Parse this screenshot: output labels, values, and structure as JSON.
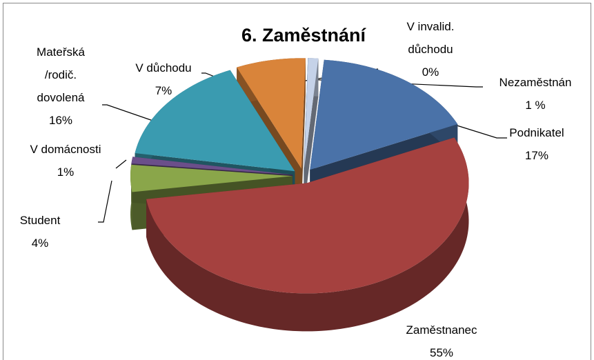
{
  "chart_data": {
    "type": "pie3d",
    "title": "6. Zaměstnání",
    "categories": [
      "Podnikatel",
      "Zaměstnanec",
      "Student",
      "V domácnosti",
      "Mateřská /rodič. dovolená",
      "V důchodu",
      "V invalid. důchodu",
      "Nezaměstnán"
    ],
    "values": [
      17,
      55,
      4,
      1,
      16,
      7,
      0,
      1
    ],
    "value_labels": [
      "17%",
      "55%",
      "4%",
      "1%",
      "16%",
      "7%",
      "0%",
      "1 %"
    ],
    "colors": [
      "#4a72a8",
      "#a5413f",
      "#8aa64a",
      "#6b4f8a",
      "#3a9bb0",
      "#d9843a",
      "#9ab7de",
      "#c5d2e8"
    ]
  }
}
